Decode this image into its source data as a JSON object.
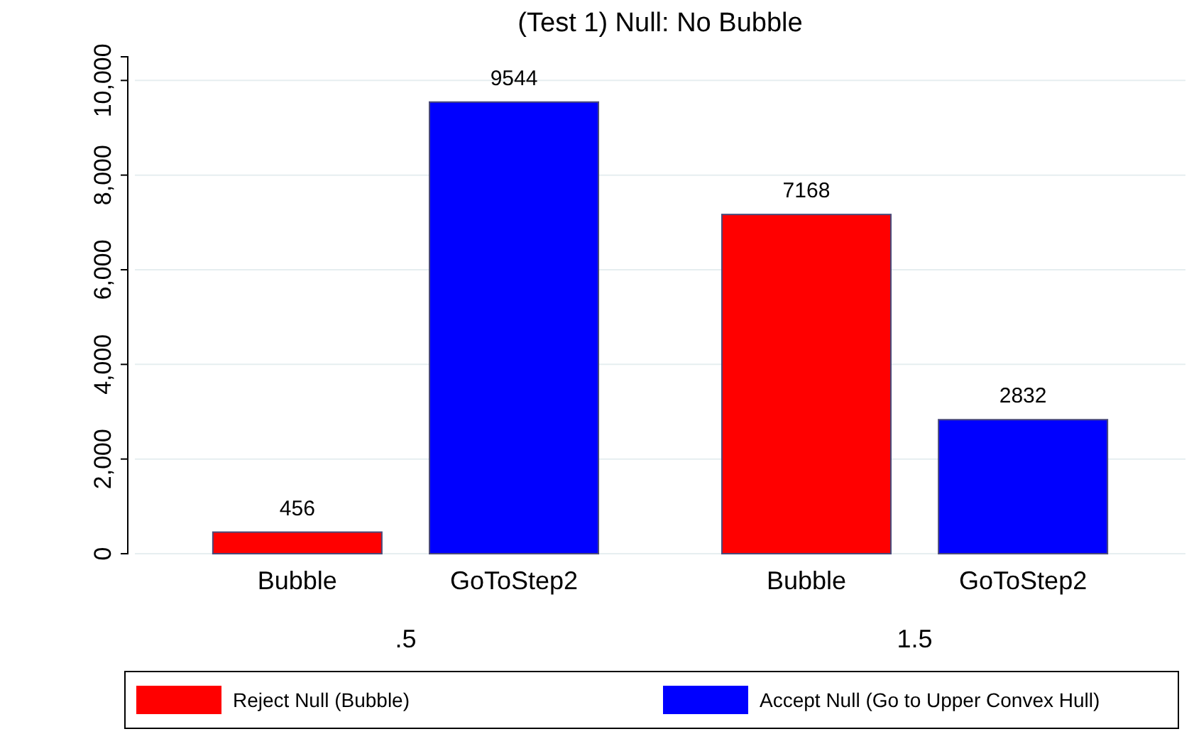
{
  "chart_data": {
    "type": "bar",
    "title": "(Test 1) Null: No Bubble",
    "categories": [
      "Bubble",
      "GoToStep2",
      "Bubble",
      "GoToStep2"
    ],
    "series": [
      {
        "name": "Reject Null (Bubble)",
        "color": "#ff0000",
        "values": [
          456,
          null,
          7168,
          null
        ]
      },
      {
        "name": "Accept Null (Go to Upper Convex Hull)",
        "color": "#0000ff",
        "values": [
          null,
          9544,
          null,
          2832
        ]
      }
    ],
    "annotations": [
      ".5",
      "1.5"
    ],
    "ylim": [
      0,
      10500
    ],
    "yticks": [
      0,
      {
        "value": 2000,
        "label": "2,000"
      },
      {
        "value": 4000,
        "label": "4,000"
      },
      {
        "value": 6000,
        "label": "6,000"
      },
      {
        "value": 8000,
        "label": "8,000"
      },
      {
        "value": 10000,
        "label": "10,000"
      }
    ],
    "grid": "y",
    "legend": "bottom",
    "data_labels": true
  }
}
